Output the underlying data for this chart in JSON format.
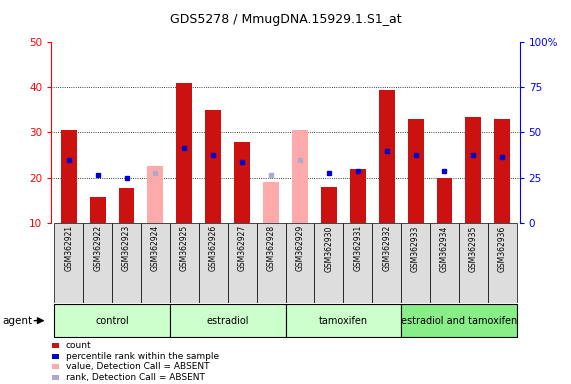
{
  "title": "GDS5278 / MmugDNA.15929.1.S1_at",
  "samples": [
    "GSM362921",
    "GSM362922",
    "GSM362923",
    "GSM362924",
    "GSM362925",
    "GSM362926",
    "GSM362927",
    "GSM362928",
    "GSM362929",
    "GSM362930",
    "GSM362931",
    "GSM362932",
    "GSM362933",
    "GSM362934",
    "GSM362935",
    "GSM362936"
  ],
  "count_values": [
    30.5,
    15.8,
    17.8,
    null,
    41.0,
    35.0,
    27.8,
    null,
    null,
    18.0,
    21.8,
    39.5,
    33.0,
    20.0,
    33.5,
    33.0
  ],
  "rank_values": [
    24.0,
    20.5,
    20.0,
    null,
    26.5,
    25.0,
    23.5,
    20.5,
    24.0,
    21.0,
    21.5,
    26.0,
    25.0,
    21.5,
    25.0,
    24.5
  ],
  "absent_count": [
    null,
    null,
    null,
    22.5,
    null,
    null,
    null,
    19.0,
    30.5,
    null,
    null,
    null,
    null,
    null,
    null,
    null
  ],
  "absent_rank": [
    null,
    null,
    null,
    21.0,
    null,
    null,
    null,
    20.5,
    24.0,
    null,
    null,
    null,
    null,
    null,
    null,
    null
  ],
  "count_absent": [
    false,
    false,
    false,
    true,
    false,
    false,
    false,
    true,
    true,
    false,
    false,
    false,
    false,
    false,
    false,
    false
  ],
  "bar_color": "#cc1111",
  "bar_absent_color": "#ffaaaa",
  "rank_color": "#0000cc",
  "rank_absent_color": "#aaaacc",
  "ylim_left": [
    10,
    50
  ],
  "ylim_right": [
    0,
    100
  ],
  "yticks_left": [
    10,
    20,
    30,
    40,
    50
  ],
  "yticks_right": [
    0,
    25,
    50,
    75,
    100
  ],
  "bar_width": 0.55,
  "groups": [
    {
      "label": "control",
      "start": 0,
      "end": 3,
      "color": "#ccffcc"
    },
    {
      "label": "estradiol",
      "start": 4,
      "end": 7,
      "color": "#ccffcc"
    },
    {
      "label": "tamoxifen",
      "start": 8,
      "end": 11,
      "color": "#ccffcc"
    },
    {
      "label": "estradiol and tamoxifen",
      "start": 12,
      "end": 15,
      "color": "#88ee88"
    }
  ],
  "legend_entries": [
    {
      "label": "count",
      "color": "#cc1111"
    },
    {
      "label": "percentile rank within the sample",
      "color": "#0000cc"
    },
    {
      "label": "value, Detection Call = ABSENT",
      "color": "#ffaaaa"
    },
    {
      "label": "rank, Detection Call = ABSENT",
      "color": "#aaaacc"
    }
  ]
}
